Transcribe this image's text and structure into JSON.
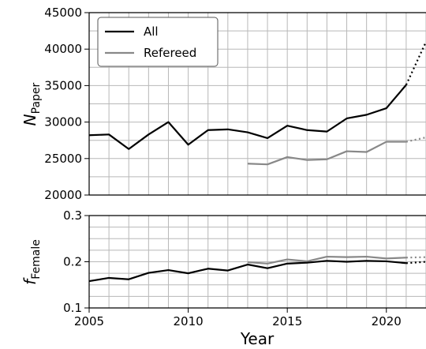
{
  "chart_data": [
    {
      "type": "line",
      "ylabel_main": "N",
      "ylabel_sub": "Paper",
      "ylim": [
        20000,
        45000
      ],
      "yticks": [
        20000,
        25000,
        30000,
        35000,
        40000,
        45000
      ],
      "xlim": [
        2005,
        2022
      ],
      "grid": true,
      "legend": {
        "placement": "top-left",
        "entries": [
          "All",
          "Refereed"
        ]
      },
      "series": [
        {
          "name": "All",
          "color": "#000000",
          "x": [
            2005,
            2006,
            2007,
            2008,
            2009,
            2010,
            2011,
            2012,
            2013,
            2014,
            2015,
            2016,
            2017,
            2018,
            2019,
            2020,
            2021
          ],
          "values": [
            28200,
            28300,
            26300,
            28300,
            30000,
            26900,
            28900,
            29000,
            28600,
            27800,
            29500,
            28900,
            28700,
            30500,
            31000,
            31900,
            35100
          ],
          "projection": {
            "x": [
              2021,
              2022
            ],
            "values": [
              35100,
              41000
            ]
          }
        },
        {
          "name": "Refereed",
          "color": "#888888",
          "x": [
            2013,
            2014,
            2015,
            2016,
            2017,
            2018,
            2019,
            2020,
            2021
          ],
          "values": [
            24300,
            24200,
            25200,
            24800,
            24900,
            26000,
            25900,
            27300,
            27300
          ],
          "projection": {
            "x": [
              2021,
              2022
            ],
            "values": [
              27300,
              27900
            ]
          }
        }
      ]
    },
    {
      "type": "line",
      "ylabel_main": "f",
      "ylabel_sub": "Female",
      "ylim": [
        0.1,
        0.3
      ],
      "yticks": [
        0.1,
        0.2,
        0.3
      ],
      "xlim": [
        2005,
        2022
      ],
      "xticks": [
        2005,
        2010,
        2015,
        2020
      ],
      "xlabel": "Year",
      "grid": true,
      "series": [
        {
          "name": "Refereed",
          "color": "#888888",
          "x": [
            2013,
            2014,
            2015,
            2016,
            2017,
            2018,
            2019,
            2020,
            2021
          ],
          "values": [
            0.199,
            0.196,
            0.205,
            0.201,
            0.211,
            0.21,
            0.211,
            0.207,
            0.209
          ],
          "projection": {
            "x": [
              2021,
              2022
            ],
            "values": [
              0.209,
              0.21
            ]
          }
        },
        {
          "name": "All",
          "color": "#000000",
          "x": [
            2005,
            2006,
            2007,
            2008,
            2009,
            2010,
            2011,
            2012,
            2013,
            2014,
            2015,
            2016,
            2017,
            2018,
            2019,
            2020,
            2021
          ],
          "values": [
            0.158,
            0.165,
            0.162,
            0.176,
            0.182,
            0.175,
            0.185,
            0.181,
            0.194,
            0.186,
            0.196,
            0.198,
            0.202,
            0.2,
            0.202,
            0.201,
            0.197
          ],
          "projection": {
            "x": [
              2021,
              2022
            ],
            "values": [
              0.197,
              0.2
            ]
          }
        }
      ]
    }
  ]
}
